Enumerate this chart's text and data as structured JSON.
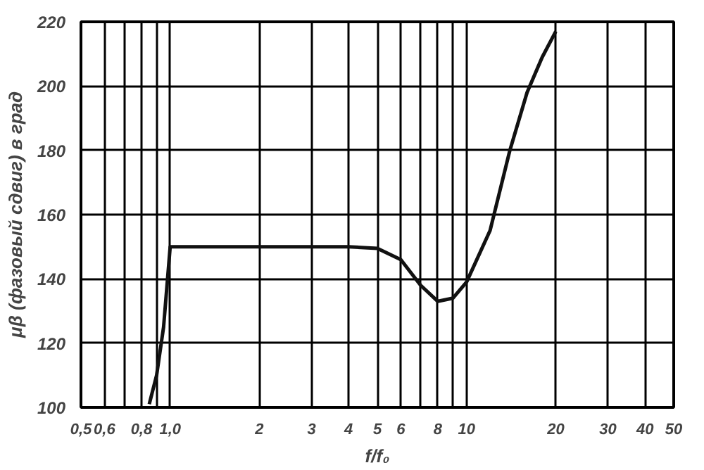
{
  "chart_data": {
    "type": "line",
    "xlabel": "f/f₀",
    "ylabel": "μβ (фазовый сдвиг) в град",
    "x": [
      0.85,
      0.9,
      0.95,
      1.0,
      2,
      3,
      4,
      5,
      6,
      7,
      8,
      9,
      10,
      12,
      14,
      16,
      18,
      20
    ],
    "series": [
      {
        "color": "#111111",
        "values": [
          101,
          110,
          125,
          150,
          150,
          150,
          150,
          149.5,
          146,
          138,
          133,
          134,
          139,
          155,
          180,
          198,
          209,
          217
        ]
      }
    ],
    "log": "x",
    "xlim": [
      0.5,
      50
    ],
    "ylim": [
      100,
      220
    ],
    "xticks": [
      {
        "value": 0.5,
        "label": "0,5"
      },
      {
        "value": 0.6,
        "label": "0,6"
      },
      {
        "value": 0.7,
        "label": null
      },
      {
        "value": 0.8,
        "label": "0,8"
      },
      {
        "value": 0.9,
        "label": null
      },
      {
        "value": 1.0,
        "label": "1,0"
      },
      2,
      3,
      4,
      5,
      6,
      {
        "value": 7,
        "label": null
      },
      8,
      {
        "value": 9,
        "label": null
      },
      10,
      20,
      30,
      40,
      50
    ],
    "yticks": [
      100,
      120,
      140,
      160,
      180,
      200,
      220
    ],
    "grid": true,
    "marker": "none",
    "line_style": "solid"
  }
}
